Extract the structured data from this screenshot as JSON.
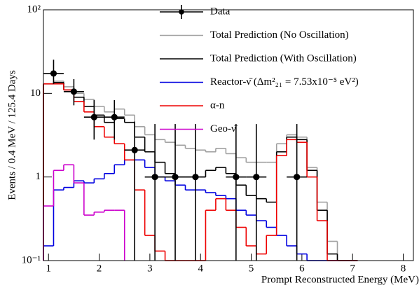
{
  "chart_data": {
    "type": "histogram",
    "x_label": "Prompt Reconstructed Energy (MeV)",
    "y_label": "Events / 0.4 MeV / 125.4 Days",
    "log_y": true,
    "xlim": [
      0.9,
      8.2
    ],
    "ylim": [
      0.1,
      100
    ],
    "xticks": [
      1,
      2,
      3,
      4,
      5,
      6,
      7,
      8
    ],
    "yticks": [
      {
        "value": 0.1,
        "label": "10⁻¹"
      },
      1,
      10,
      {
        "value": 100,
        "label": "10²"
      }
    ],
    "bins": [
      0.9,
      1.1,
      1.3,
      1.5,
      1.7,
      1.9,
      2.1,
      2.3,
      2.5,
      2.7,
      2.9,
      3.1,
      3.3,
      3.5,
      3.7,
      3.9,
      4.1,
      4.3,
      4.5,
      4.7,
      4.9,
      5.1,
      5.3,
      5.5,
      5.7,
      5.9,
      6.1,
      6.3,
      6.5,
      6.7,
      6.9,
      7.1
    ],
    "points": {
      "name": "Data",
      "color": "#000000",
      "x": [
        1.1,
        1.5,
        1.9,
        2.3,
        2.7,
        3.1,
        3.5,
        3.9,
        4.7,
        5.1,
        5.9
      ],
      "y": [
        17.3,
        10.5,
        5.2,
        5.2,
        2.1,
        1,
        1,
        1,
        1,
        1,
        1
      ],
      "yerr_low": [
        4.3,
        3.3,
        2.4,
        2.4,
        2.1,
        1,
        1,
        1,
        1,
        1,
        1
      ],
      "yerr_high": [
        8,
        4.3,
        3.1,
        3.1,
        2.5,
        3.3,
        3.3,
        3.3,
        3.3,
        3.3,
        3.3
      ],
      "xerr": 0.2
    },
    "series": [
      {
        "name": "Total Prediction (No Oscillation)",
        "color": "#a0a0a0",
        "values": [
          13,
          14,
          12,
          10,
          8.5,
          7,
          6,
          6.5,
          5.5,
          4,
          3.2,
          2.8,
          2.6,
          2.4,
          2.2,
          2.1,
          2.0,
          2.2,
          1.9,
          1.7,
          1.5,
          1.5,
          1.5,
          2.5,
          3.2,
          3.0,
          1.3,
          0.5,
          0.17,
          0.1,
          0.1
        ]
      },
      {
        "name": "Total Prediction (With Oscillation)",
        "color": "#000000",
        "values": [
          13,
          13.5,
          11,
          9,
          7,
          5.5,
          4.5,
          5,
          4.5,
          3,
          2.0,
          1.5,
          1.1,
          1.0,
          1.0,
          1.0,
          1.2,
          1.3,
          1.1,
          0.8,
          0.6,
          0.55,
          0.5,
          2.0,
          3.0,
          2.8,
          1.2,
          0.4,
          0.12,
          0.1,
          0.1
        ]
      },
      {
        "name": "Reactor-ν̄ (Δm²₂₁ = 7.53x10⁻⁵ eV²)",
        "color": "#0000e0",
        "values": [
          0.15,
          0.7,
          0.75,
          0.9,
          0.85,
          0.95,
          1.1,
          1.4,
          1.6,
          1.6,
          1.3,
          1.0,
          0.9,
          0.8,
          0.7,
          0.7,
          0.65,
          0.6,
          0.55,
          0.4,
          0.35,
          0.3,
          0.25,
          0.2,
          0.15,
          0.12,
          0.1,
          0.1,
          0.1,
          0.1,
          0.1
        ]
      },
      {
        "name": "α-n",
        "color": "#ee0000",
        "values": [
          13,
          13,
          11,
          8,
          6,
          4,
          3,
          2.5,
          1.6,
          0.7,
          0.2,
          0.13,
          0.1,
          0.1,
          0.1,
          0.1,
          0.4,
          0.55,
          0.4,
          0.25,
          0.15,
          0.12,
          0.2,
          1.8,
          2.8,
          2.6,
          1.0,
          0.3,
          0.1,
          0.1,
          0.1
        ]
      },
      {
        "name": "Geo-ν̄",
        "color": "#cc00cc",
        "values": [
          0.45,
          1.2,
          1.4,
          0.85,
          0.35,
          0.38,
          0.4,
          0.4,
          null,
          null,
          null,
          null,
          null,
          null,
          null,
          null,
          null,
          null,
          null,
          null,
          null,
          null,
          null,
          null,
          null,
          null,
          null,
          null,
          null,
          null,
          null
        ]
      }
    ]
  }
}
